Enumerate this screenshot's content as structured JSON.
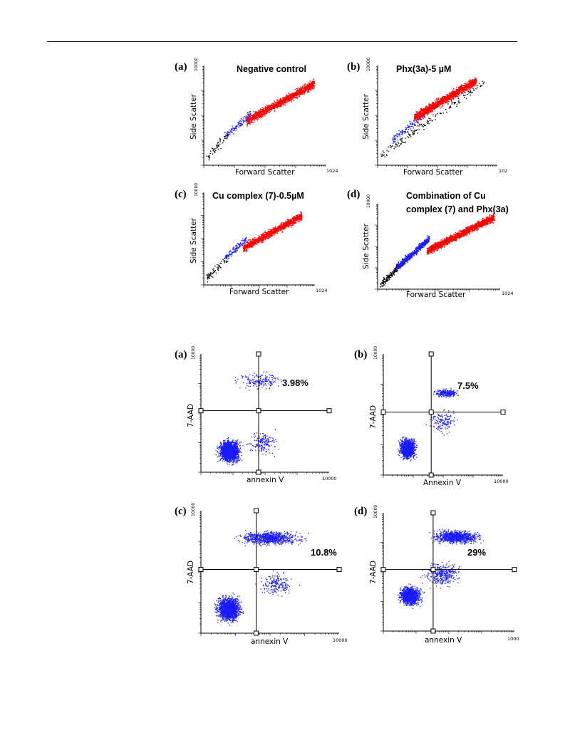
{
  "chart_data": [
    {
      "id": "scatter-a",
      "type": "scatter",
      "panel": "(a)",
      "title": "Negative control",
      "xlabel": "Forward Scatter",
      "ylabel": "Side Scatter",
      "x_tick_max": "1024",
      "y_tick_max": "10000",
      "series": [
        {
          "color": "#000000",
          "x": [
            0.02,
            0.2
          ],
          "y": [
            0.08,
            0.32
          ],
          "n": 60
        },
        {
          "color": "#1a1aff",
          "x": [
            0.18,
            0.38
          ],
          "y": [
            0.3,
            0.52
          ],
          "n": 110
        },
        {
          "color": "#ff0000",
          "x": [
            0.35,
            0.9
          ],
          "y": [
            0.45,
            0.82
          ],
          "n": 1300
        }
      ]
    },
    {
      "id": "scatter-b",
      "type": "scatter",
      "panel": "(b)",
      "title": "Phx(3a)-5 µM",
      "xlabel": "Forward Scatter",
      "ylabel": "Side Scatter",
      "x_tick_max": "102",
      "y_tick_max": "10000",
      "series": [
        {
          "color": "#000000",
          "x": [
            0.02,
            0.9
          ],
          "y": [
            0.1,
            0.85
          ],
          "n": 160
        },
        {
          "color": "#1a1aff",
          "x": [
            0.12,
            0.42
          ],
          "y": [
            0.25,
            0.55
          ],
          "n": 150
        },
        {
          "color": "#ff0000",
          "x": [
            0.3,
            0.82
          ],
          "y": [
            0.48,
            0.85
          ],
          "n": 1400
        }
      ]
    },
    {
      "id": "scatter-c",
      "type": "scatter",
      "panel": "(c)",
      "title": "Cu complex (7)-0.5µM",
      "xlabel": "Forward Scatter",
      "ylabel": "Side Scatter",
      "x_tick_max": "1024",
      "y_tick_max": "10000",
      "series": [
        {
          "color": "#000000",
          "x": [
            0.02,
            0.22
          ],
          "y": [
            0.08,
            0.3
          ],
          "n": 70
        },
        {
          "color": "#1a1aff",
          "x": [
            0.18,
            0.38
          ],
          "y": [
            0.28,
            0.5
          ],
          "n": 110
        },
        {
          "color": "#ff0000",
          "x": [
            0.35,
            0.88
          ],
          "y": [
            0.4,
            0.75
          ],
          "n": 1200
        }
      ]
    },
    {
      "id": "scatter-d",
      "type": "scatter",
      "panel": "(d)",
      "title": "Combination of Cu complex (7) and Phx(3a)",
      "xlabel": "Forward Scatter",
      "ylabel": "Side Scatter",
      "x_tick_max": "1024",
      "y_tick_max": "10000",
      "series": [
        {
          "color": "#000000",
          "x": [
            0.02,
            0.22
          ],
          "y": [
            0.05,
            0.35
          ],
          "n": 220
        },
        {
          "color": "#1a1aff",
          "x": [
            0.15,
            0.42
          ],
          "y": [
            0.25,
            0.6
          ],
          "n": 550
        },
        {
          "color": "#ff0000",
          "x": [
            0.4,
            0.95
          ],
          "y": [
            0.45,
            0.85
          ],
          "n": 1500
        }
      ]
    },
    {
      "id": "quad-a",
      "type": "scatter",
      "panel": "(a)",
      "xlabel": "annexin V",
      "ylabel": "7-AAD",
      "x_tick_max": "10000",
      "y_tick_max": "10000",
      "quadrant_label": "3.98%",
      "gate_x": 0.45,
      "gate_y": 0.52,
      "series": [
        {
          "color": "#1a1aff",
          "x": [
            0.0,
            1.0
          ],
          "y": [
            0.0,
            1.0
          ],
          "n": 2000
        }
      ]
    },
    {
      "id": "quad-b",
      "type": "scatter",
      "panel": "(b)",
      "xlabel": "Annexin V",
      "ylabel": "7-AAD",
      "x_tick_max": "10000",
      "y_tick_max": "10000",
      "quadrant_label": "7.5%",
      "gate_x": 0.4,
      "gate_y": 0.52,
      "series": [
        {
          "color": "#1a1aff",
          "x": [
            0.0,
            1.0
          ],
          "y": [
            0.0,
            1.0
          ],
          "n": 1700
        }
      ]
    },
    {
      "id": "quad-c",
      "type": "scatter",
      "panel": "(c)",
      "xlabel": "annexin V",
      "ylabel": "7-AAD",
      "x_tick_max": "10000",
      "y_tick_max": "10000",
      "quadrant_label": "10.8%",
      "gate_x": 0.4,
      "gate_y": 0.52,
      "series": [
        {
          "color": "#1a1aff",
          "x": [
            0.0,
            1.0
          ],
          "y": [
            0.0,
            1.0
          ],
          "n": 2600
        }
      ]
    },
    {
      "id": "quad-d",
      "type": "scatter",
      "panel": "(d)",
      "xlabel": "annexin V",
      "ylabel": "7-AAD",
      "x_tick_max": "1000",
      "y_tick_max": "10000",
      "quadrant_label": "29%",
      "gate_x": 0.38,
      "gate_y": 0.52,
      "series": [
        {
          "color": "#1a1aff",
          "x": [
            0.0,
            1.0
          ],
          "y": [
            0.0,
            1.0
          ],
          "n": 2400
        }
      ]
    }
  ]
}
